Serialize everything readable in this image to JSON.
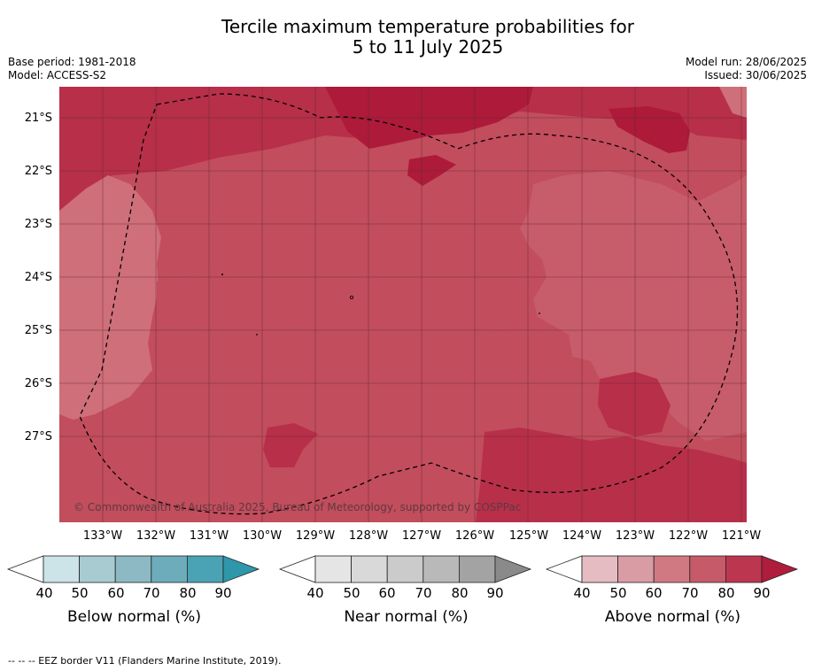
{
  "title_line1": "Tercile maximum temperature probabilities for",
  "title_line2": "5 to 11 July 2025",
  "base_period": "Base period: 1981-2018",
  "model": "Model: ACCESS-S2",
  "model_run": "Model run: 28/06/2025",
  "issued": "Issued: 30/06/2025",
  "lat_labels": [
    "21°S",
    "22°S",
    "23°S",
    "24°S",
    "25°S",
    "26°S",
    "27°S"
  ],
  "lon_labels": [
    "133°W",
    "132°W",
    "131°W",
    "130°W",
    "129°W",
    "128°W",
    "127°W",
    "126°W",
    "125°W",
    "124°W",
    "123°W",
    "122°W",
    "121°W"
  ],
  "copyright": "© Commonwealth of Australia 2025, Bureau of Meteorology, supported by COSPPac",
  "colorbars": [
    {
      "title": "Below normal (%)",
      "ticks": [
        "40",
        "50",
        "60",
        "70",
        "80",
        "90"
      ],
      "colors": [
        "#ffffff",
        "#cce3e8",
        "#a8cbd2",
        "#8db9c4",
        "#6cacbb",
        "#4aa3b5",
        "#2f97aa"
      ]
    },
    {
      "title": "Near normal (%)",
      "ticks": [
        "40",
        "50",
        "60",
        "70",
        "80",
        "90"
      ],
      "colors": [
        "#ffffff",
        "#e5e5e5",
        "#d9d9d9",
        "#cbcbcb",
        "#b9b9b9",
        "#a3a3a3",
        "#8a8a8a"
      ]
    },
    {
      "title": "Above normal (%)",
      "ticks": [
        "40",
        "50",
        "60",
        "70",
        "80",
        "90"
      ],
      "colors": [
        "#ffffff",
        "#e4bcc2",
        "#d99ba4",
        "#d17982",
        "#c75a68",
        "#bd3650",
        "#b01c3c"
      ]
    }
  ],
  "footer": "--  --  -- EEZ border V11 (Flanders Marine Institute, 2019).",
  "colors": {
    "level_60_70": "#cf6f7a",
    "level_70_80": "#c24d5d",
    "level_80_90": "#b72d48",
    "level_90": "#ad1a3a",
    "grid": "#5a2a32"
  }
}
